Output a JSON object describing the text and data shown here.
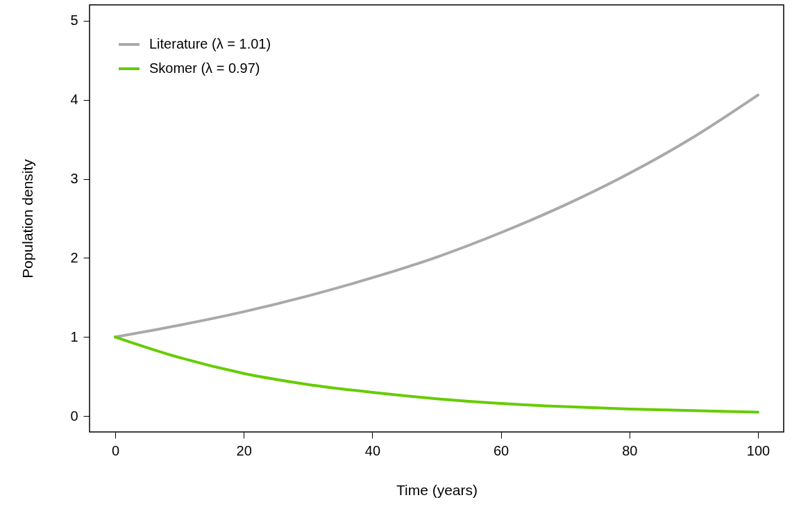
{
  "chart_data": {
    "type": "line",
    "xlabel": "Time (years)",
    "ylabel": "Population density",
    "x": [
      0,
      10,
      20,
      30,
      40,
      50,
      60,
      70,
      80,
      90,
      100
    ],
    "series": [
      {
        "name": "Literature (λ = 1.01)",
        "color": "#a9a9a9",
        "values": [
          1,
          1.15,
          1.32,
          1.52,
          1.75,
          2.01,
          2.32,
          2.67,
          3.07,
          3.53,
          4.06
        ]
      },
      {
        "name": "Skomer (λ = 0.97)",
        "color": "#66cc00",
        "values": [
          1,
          0.74,
          0.54,
          0.4,
          0.3,
          0.22,
          0.16,
          0.12,
          0.09,
          0.07,
          0.05
        ]
      }
    ],
    "xlim": [
      -4,
      104
    ],
    "xticks": [
      0,
      20,
      40,
      60,
      80,
      100
    ],
    "ylim": [
      -0.2,
      5.2
    ],
    "yticks": [
      0,
      1,
      2,
      3,
      4,
      5
    ],
    "grid": false,
    "legend": "top left",
    "marker": "none",
    "line_style": "solid"
  }
}
